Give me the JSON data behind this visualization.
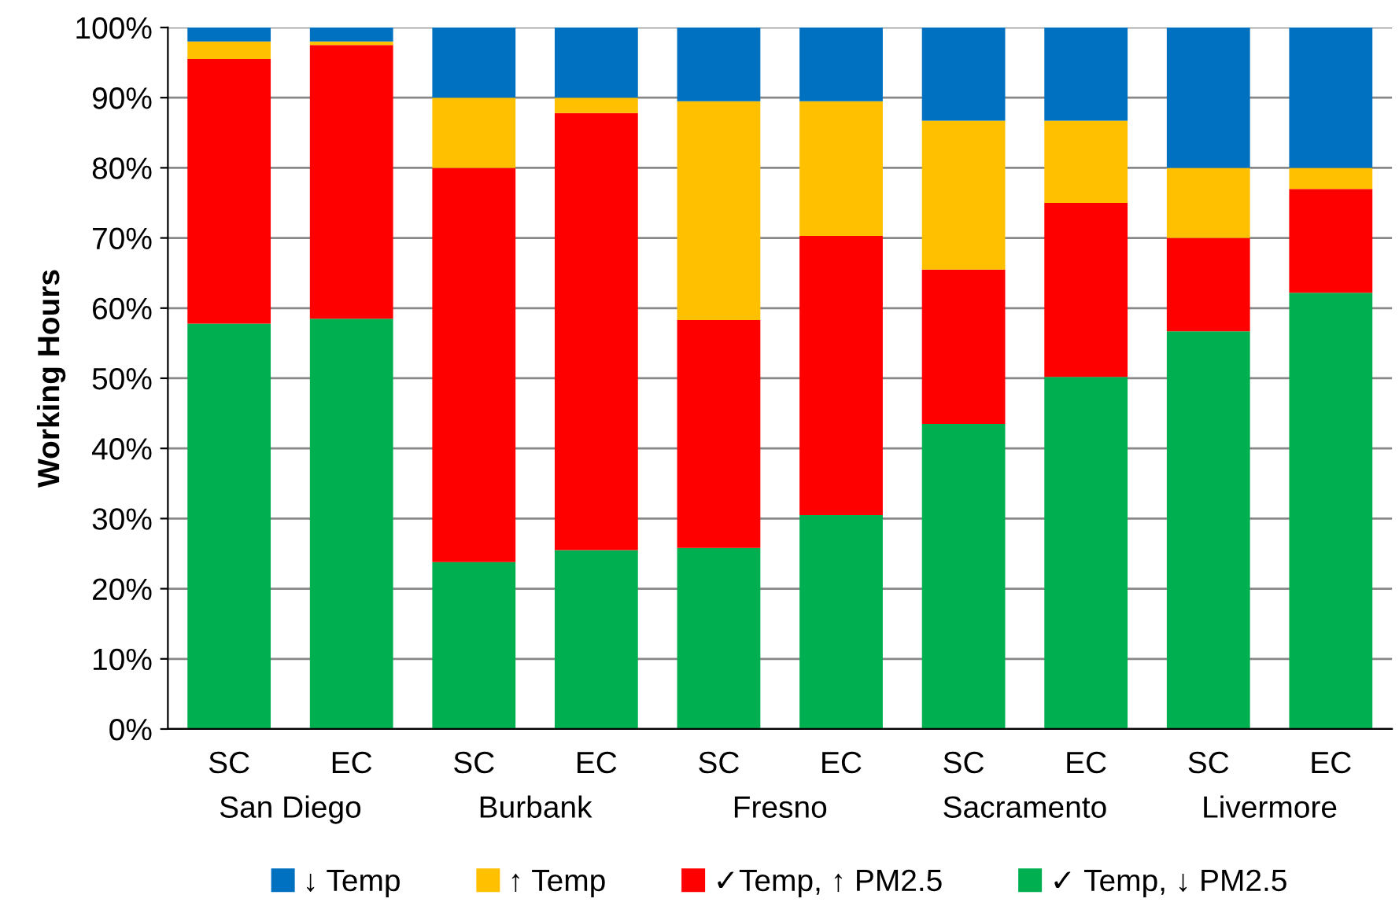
{
  "chart_data": {
    "type": "bar",
    "stacked": true,
    "ylabel": "Working Hours",
    "categories": [
      "SC",
      "EC",
      "SC",
      "EC",
      "SC",
      "EC",
      "SC",
      "EC",
      "SC",
      "EC"
    ],
    "annotations": [
      "San Diego",
      "Burbank",
      "Fresno",
      "Sacramento",
      "Livermore"
    ],
    "series": [
      {
        "name": "✓ Temp, ↓ PM2.5",
        "color": "#00b050",
        "values": [
          57.8,
          58.5,
          23.8,
          25.5,
          25.8,
          30.5,
          43.5,
          50.2,
          56.7,
          62.2
        ]
      },
      {
        "name": "✓Temp, ↑ PM2.5",
        "color": "#ff0000",
        "values": [
          37.7,
          39.0,
          56.2,
          62.3,
          32.5,
          39.8,
          22.0,
          24.8,
          13.3,
          14.8
        ]
      },
      {
        "name": "↑ Temp",
        "color": "#ffc000",
        "values": [
          2.5,
          0.5,
          10.0,
          2.2,
          31.2,
          19.2,
          21.2,
          11.7,
          10.0,
          3.0
        ]
      },
      {
        "name": "↓ Temp",
        "color": "#0070c0",
        "values": [
          2.0,
          2.0,
          10.0,
          10.0,
          10.5,
          10.5,
          13.3,
          13.3,
          20.0,
          20.0
        ]
      }
    ],
    "ylim": [
      0,
      100
    ],
    "yticks": [
      {
        "value": 0,
        "label": "0%"
      },
      {
        "value": 10,
        "label": "10%"
      },
      {
        "value": 20,
        "label": "20%"
      },
      {
        "value": 30,
        "label": "30%"
      },
      {
        "value": 40,
        "label": "40%"
      },
      {
        "value": 50,
        "label": "50%"
      },
      {
        "value": 60,
        "label": "60%"
      },
      {
        "value": 70,
        "label": "70%"
      },
      {
        "value": 80,
        "label": "80%"
      },
      {
        "value": 90,
        "label": "90%"
      },
      {
        "value": 100,
        "label": "100%"
      }
    ],
    "grid": "y",
    "legend": "bottom"
  }
}
